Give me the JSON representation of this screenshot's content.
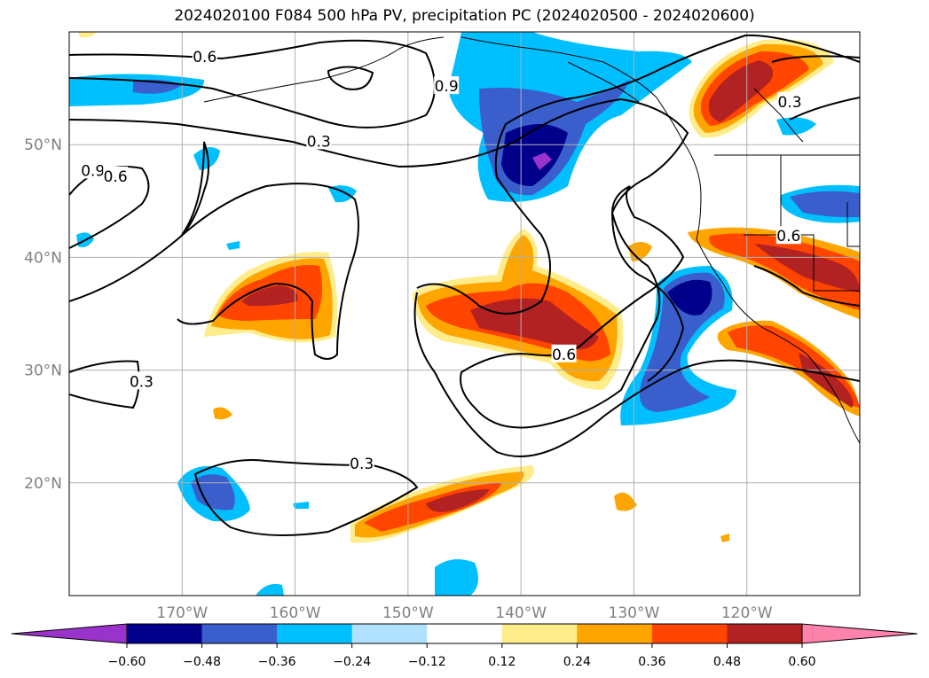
{
  "title": "2024020100 F084 500 hPa PV, precipitation PC (2024020500 - 2024020600)",
  "map": {
    "lon_range": [
      -180,
      -110
    ],
    "lat_range": [
      10,
      60
    ],
    "lat_ticks": [
      {
        "value": 20,
        "label": "20°N"
      },
      {
        "value": 30,
        "label": "30°N"
      },
      {
        "value": 40,
        "label": "40°N"
      },
      {
        "value": 50,
        "label": "50°N"
      }
    ],
    "lon_ticks": [
      {
        "value": -170,
        "label": "170°W"
      },
      {
        "value": -160,
        "label": "160°W"
      },
      {
        "value": -150,
        "label": "150°W"
      },
      {
        "value": -140,
        "label": "140°W"
      },
      {
        "value": -130,
        "label": "130°W"
      },
      {
        "value": -120,
        "label": "120°W"
      }
    ],
    "grid": true,
    "contour_labels": [
      {
        "text": "0.6",
        "lon": -168,
        "lat": 57.8
      },
      {
        "text": "0.9",
        "lon": -146.6,
        "lat": 55.2
      },
      {
        "text": "0.3",
        "lon": -157.9,
        "lat": 50.3
      },
      {
        "text": "0.9",
        "lon": -177.9,
        "lat": 47.7
      },
      {
        "text": "0.6",
        "lon": -175.9,
        "lat": 47.2
      },
      {
        "text": "0.3",
        "lon": -116.2,
        "lat": 53.8
      },
      {
        "text": "0.6",
        "lon": -116.3,
        "lat": 41.9
      },
      {
        "text": "0.6",
        "lon": -136.2,
        "lat": 31.4
      },
      {
        "text": "0.3",
        "lon": -173.6,
        "lat": 29.0
      },
      {
        "text": "0.3",
        "lon": -154.1,
        "lat": 21.7
      }
    ]
  },
  "colorbar": {
    "levels": [
      -0.6,
      -0.48,
      -0.36,
      -0.24,
      -0.12,
      0.12,
      0.24,
      0.36,
      0.48,
      0.6
    ],
    "labels": [
      "−0.60",
      "−0.48",
      "−0.36",
      "−0.24",
      "−0.12",
      "0.12",
      "0.24",
      "0.36",
      "0.48",
      "0.60"
    ],
    "colors": [
      "#9933cc",
      "#00008b",
      "#3a5fcd",
      "#00bfff",
      "#b0e2ff",
      "#ffffff",
      "#ffec8b",
      "#ffa500",
      "#ff4500",
      "#b22222",
      "#ff82ab"
    ]
  },
  "colors": {
    "contour": "#000000",
    "grid": "#b0b0b0",
    "tick_label": "#808080"
  }
}
